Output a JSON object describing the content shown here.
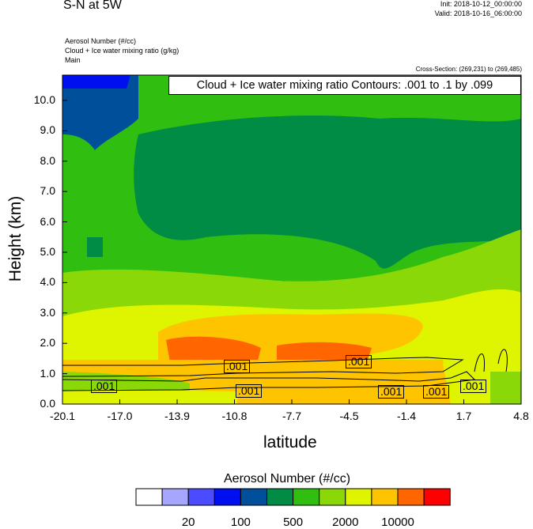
{
  "header": {
    "title": "S-N at 5W",
    "init": "Init: 2018-10-12_00:00:00",
    "valid": "Valid: 2018-10-16_06:00:00",
    "fields": [
      "Aerosol Number   (#/cc)",
      "Cloud + Ice water mixing ratio   (g/kg)",
      "Main"
    ],
    "cross_section": "Cross-Section: (269,231) to (269,485)"
  },
  "chart_data": {
    "type": "heatmap",
    "title": "S-N at 5W",
    "xlabel": "latitude",
    "ylabel": "Height (km)",
    "xticks": [
      "-20.1",
      "-17.0",
      "-13.9",
      "-10.8",
      "-7.7",
      "-4.5",
      "-1.4",
      "1.7",
      "4.8"
    ],
    "yticks": [
      "0.0",
      "1.0",
      "2.0",
      "3.0",
      "4.0",
      "5.0",
      "6.0",
      "7.0",
      "8.0",
      "9.0",
      "10.0"
    ],
    "xlim": [
      -20.1,
      4.8
    ],
    "ylim": [
      0,
      10.8
    ],
    "contour_title": "Cloud + Ice water mixing ratio Contours: .001 to .1 by .099",
    "contour_labels": [
      ".001",
      ".001",
      ".001",
      ".001",
      ".001",
      ".001",
      ".001"
    ],
    "colorbar": {
      "title": "Aerosol Number  (#/cc)",
      "colors": [
        "#ffffff",
        "#a6a6ff",
        "#4b4bff",
        "#000ff0",
        "#004f9b",
        "#008c44",
        "#30bf10",
        "#8ad808",
        "#dff500",
        "#ffc400",
        "#ff6600",
        "#ff0000"
      ],
      "labels": [
        "20",
        "100",
        "500",
        "2000",
        "10000"
      ]
    }
  }
}
